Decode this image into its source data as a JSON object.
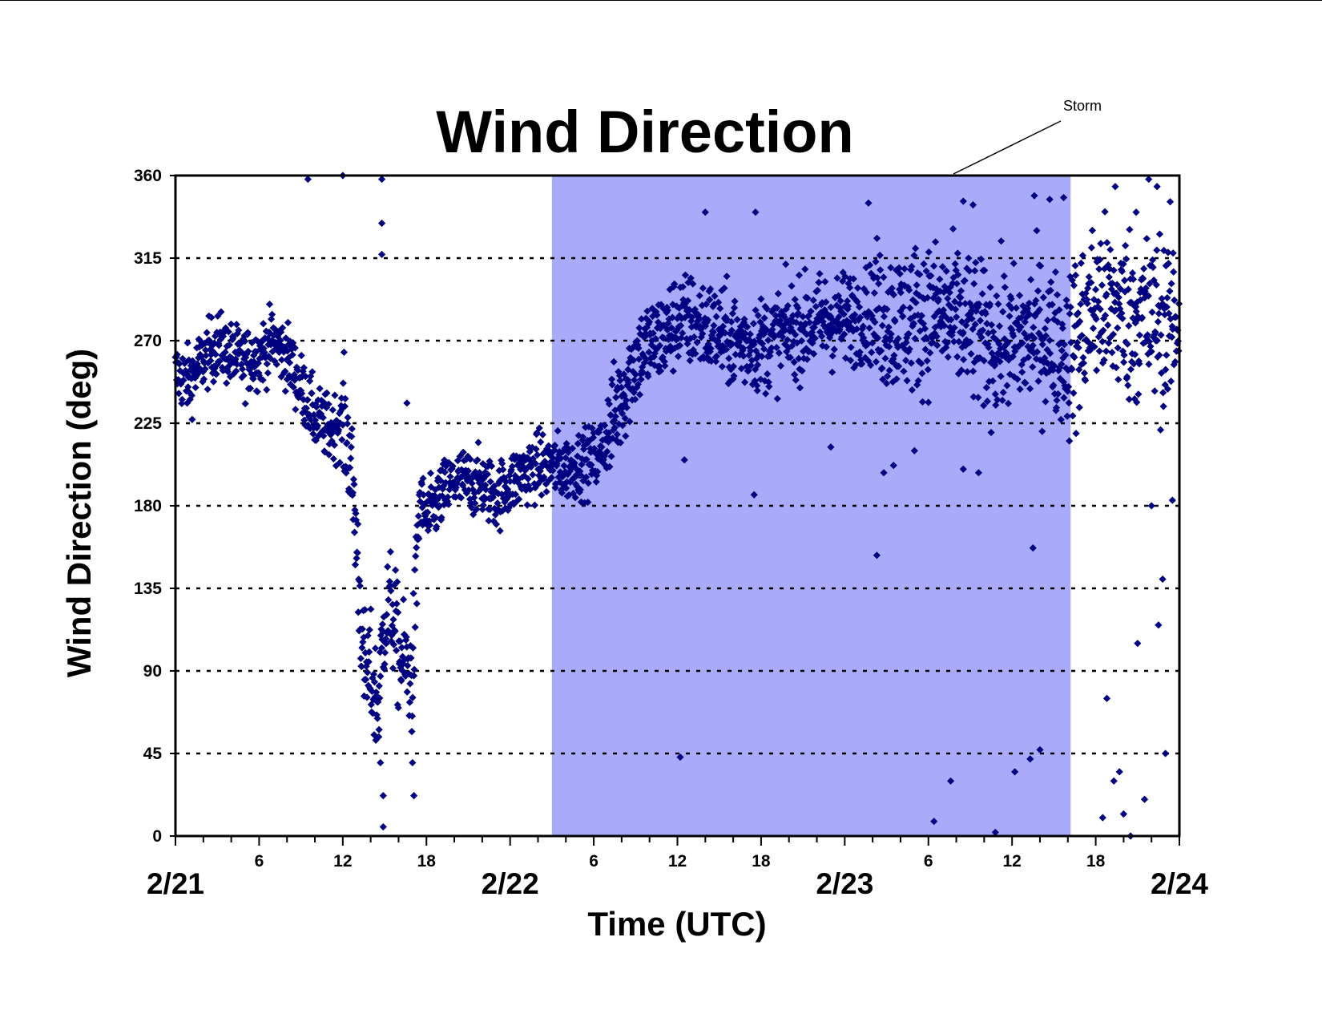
{
  "chart_data": {
    "type": "scatter",
    "title": "Wind Direction",
    "xlabel": "Time (UTC)",
    "ylabel": "Wind Direction (deg)",
    "x_unit": "hours since 2/21 00 UTC",
    "xlim": [
      0,
      72
    ],
    "ylim": [
      0,
      360
    ],
    "yticks": [
      0,
      45,
      90,
      135,
      180,
      225,
      270,
      315,
      360
    ],
    "grid": "horizontal dotted",
    "marker_color": "#000080",
    "x_hour_labels": [
      {
        "x": 6,
        "label": "6"
      },
      {
        "x": 12,
        "label": "12"
      },
      {
        "x": 18,
        "label": "18"
      },
      {
        "x": 30,
        "label": "6"
      },
      {
        "x": 36,
        "label": "12"
      },
      {
        "x": 42,
        "label": "18"
      },
      {
        "x": 54,
        "label": "6"
      },
      {
        "x": 60,
        "label": "12"
      },
      {
        "x": 66,
        "label": "18"
      }
    ],
    "x_date_labels": [
      {
        "x": 0,
        "label": "2/21"
      },
      {
        "x": 24,
        "label": "2/22"
      },
      {
        "x": 48,
        "label": "2/23"
      },
      {
        "x": 72,
        "label": "2/24"
      }
    ],
    "highlight": {
      "label": "Storm",
      "x_start": 27,
      "x_end": 64.2,
      "color": "#aaaafa"
    },
    "series": [
      {
        "name": "",
        "trend": [
          [
            0,
            252
          ],
          [
            1,
            248
          ],
          [
            2,
            260
          ],
          [
            3,
            268
          ],
          [
            4,
            262
          ],
          [
            5,
            258
          ],
          [
            6,
            262
          ],
          [
            7,
            270
          ],
          [
            8,
            262
          ],
          [
            9,
            245
          ],
          [
            10,
            228
          ],
          [
            11,
            222
          ],
          [
            12,
            226
          ],
          [
            12.5,
            210
          ],
          [
            13,
            160
          ],
          [
            13.5,
            90
          ],
          [
            14,
            88
          ],
          [
            14.5,
            70
          ],
          [
            15,
            118
          ],
          [
            15.5,
            125
          ],
          [
            16,
            100
          ],
          [
            17,
            85
          ],
          [
            17.5,
            185
          ],
          [
            18,
            172
          ],
          [
            19,
            185
          ],
          [
            20,
            193
          ],
          [
            21,
            193
          ],
          [
            22,
            192
          ],
          [
            23,
            185
          ],
          [
            24,
            192
          ],
          [
            25,
            198
          ],
          [
            26,
            202
          ],
          [
            27,
            202
          ],
          [
            28,
            200
          ],
          [
            29,
            203
          ],
          [
            30,
            205
          ],
          [
            31,
            218
          ],
          [
            32,
            240
          ],
          [
            33,
            260
          ],
          [
            34,
            268
          ],
          [
            35,
            272
          ],
          [
            36,
            282
          ],
          [
            38,
            278
          ],
          [
            40,
            270
          ],
          [
            42,
            268
          ],
          [
            44,
            275
          ],
          [
            46,
            280
          ],
          [
            48,
            282
          ],
          [
            50,
            285
          ],
          [
            52,
            280
          ],
          [
            54,
            285
          ],
          [
            56,
            282
          ],
          [
            58,
            270
          ],
          [
            60,
            268
          ],
          [
            62,
            275
          ],
          [
            64,
            262
          ],
          [
            66,
            290
          ],
          [
            68,
            285
          ],
          [
            70,
            280
          ],
          [
            72,
            282
          ]
        ],
        "outliers": [
          [
            14.8,
            358
          ],
          [
            14.8,
            334
          ],
          [
            14.8,
            317
          ],
          [
            14.9,
            5
          ],
          [
            14.9,
            22
          ],
          [
            14.7,
            40
          ],
          [
            14.6,
            58
          ],
          [
            16.6,
            236
          ],
          [
            17.1,
            22
          ],
          [
            17.0,
            40
          ],
          [
            9.5,
            358
          ],
          [
            12.0,
            360
          ],
          [
            36.2,
            43
          ],
          [
            36.5,
            205
          ],
          [
            41.5,
            186
          ],
          [
            41.6,
            340
          ],
          [
            47.0,
            212
          ],
          [
            50.3,
            153
          ],
          [
            50.8,
            198
          ],
          [
            51.5,
            202
          ],
          [
            53.0,
            210
          ],
          [
            54.4,
            8
          ],
          [
            55.6,
            30
          ],
          [
            56.5,
            200
          ],
          [
            57.6,
            198
          ],
          [
            58.8,
            2
          ],
          [
            60.2,
            35
          ],
          [
            61.3,
            42
          ],
          [
            62.0,
            47
          ],
          [
            61.5,
            157
          ],
          [
            66.5,
            10
          ],
          [
            66.8,
            75
          ],
          [
            67.3,
            30
          ],
          [
            67.7,
            35
          ],
          [
            68.0,
            12
          ],
          [
            68.5,
            0
          ],
          [
            69.0,
            105
          ],
          [
            69.5,
            20
          ],
          [
            70.5,
            115
          ],
          [
            70.8,
            140
          ],
          [
            71.0,
            45
          ],
          [
            70.0,
            180
          ],
          [
            71.5,
            183
          ],
          [
            70.4,
            354
          ],
          [
            69.8,
            358
          ],
          [
            68.9,
            340
          ],
          [
            67.4,
            354
          ],
          [
            57.2,
            344
          ],
          [
            49.7,
            345
          ],
          [
            56.5,
            346
          ],
          [
            61.6,
            349
          ],
          [
            62.7,
            347
          ],
          [
            63.7,
            348
          ],
          [
            38.0,
            340
          ]
        ]
      }
    ]
  }
}
